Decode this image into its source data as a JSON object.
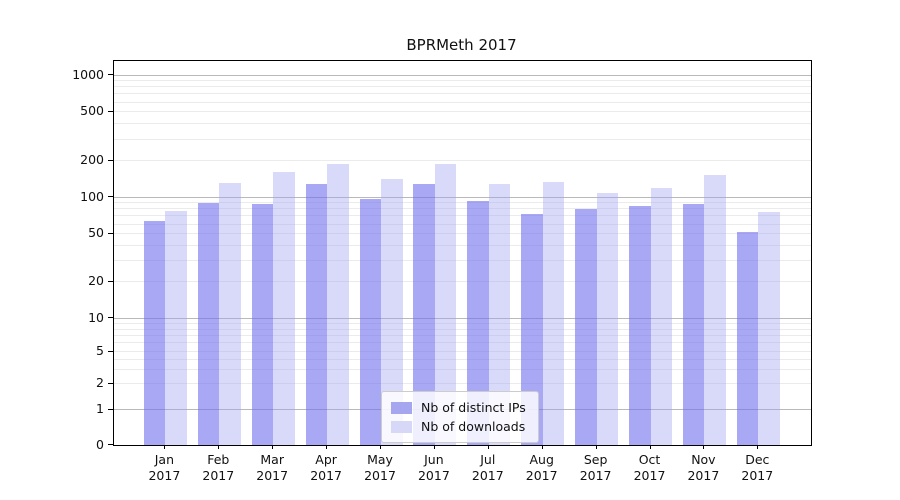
{
  "title": "BPRMeth 2017",
  "chart_data": {
    "type": "bar",
    "title": "BPRMeth 2017",
    "months": [
      "Jan",
      "Feb",
      "Mar",
      "Apr",
      "May",
      "Jun",
      "Jul",
      "Aug",
      "Sep",
      "Oct",
      "Nov",
      "Dec"
    ],
    "year": "2017",
    "series": [
      {
        "name": "Nb of distinct IPs",
        "color": "#6e6eee",
        "alpha": 0.6,
        "swatch": "#a5a5f0",
        "values": [
          64,
          90,
          88,
          128,
          96,
          127,
          93,
          73,
          79,
          84,
          88,
          52
        ]
      },
      {
        "name": "Nb of downloads",
        "color": "#a0a0f2",
        "alpha": 0.4,
        "swatch": "#d7d7f8",
        "values": [
          77,
          131,
          161,
          188,
          141,
          188,
          127,
          134,
          107,
          119,
          153,
          76
        ]
      }
    ],
    "yscale": "symlog",
    "yticks": [
      0,
      1,
      2,
      5,
      10,
      20,
      50,
      100,
      200,
      500,
      1000
    ],
    "ylim": [
      0,
      1250
    ],
    "grid": true,
    "legend_position": "lower center"
  },
  "colors": {
    "background": "#ffffff",
    "axis": "#000000",
    "text": "#111111",
    "major_grid": "#b9b9b9",
    "minor_grid": "#ebebeb",
    "legend_border": "#cccccc"
  }
}
